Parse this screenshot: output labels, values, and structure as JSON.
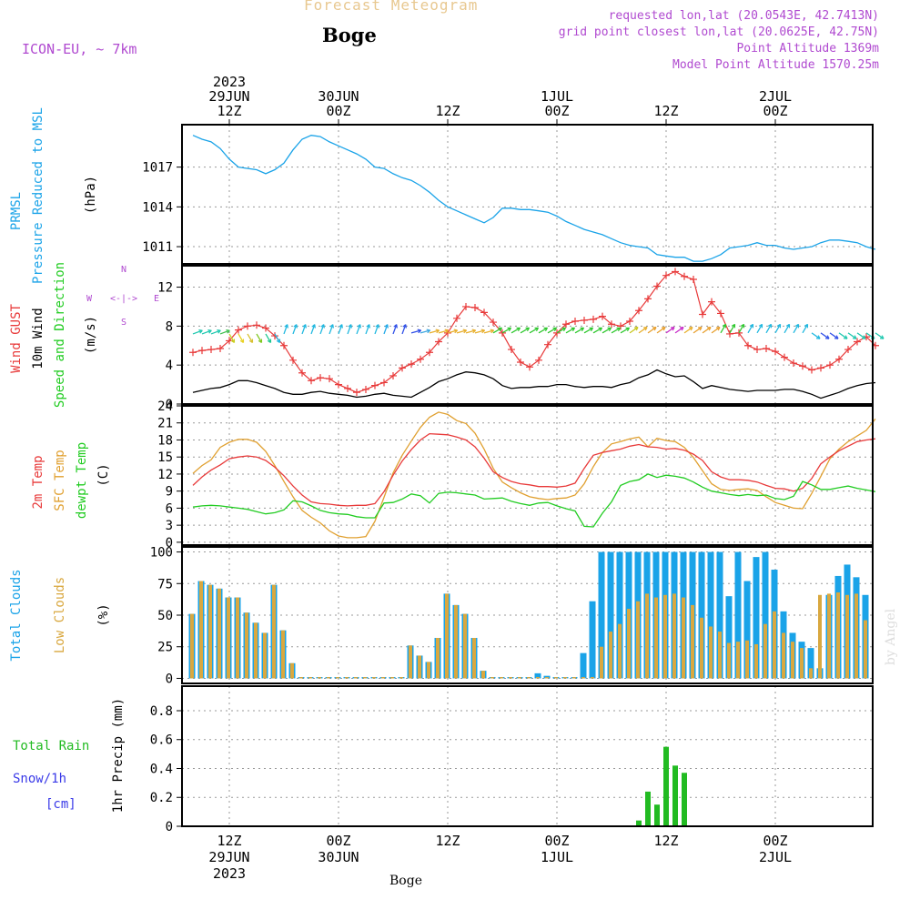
{
  "header": {
    "title": "Forecast Meteogram",
    "location": "Boge",
    "model": "ICON-EU, ~ 7km",
    "requested": "requested lon,lat (20.0543E, 42.7413N)",
    "grid_point": "grid point closest lon,lat (20.0625E, 42.75N)",
    "point_alt": "Point Altitude 1369m",
    "model_alt": "Model Point Altitude 1570.25m",
    "footer": "Boge",
    "watermark": "by Angel"
  },
  "colors": {
    "pressure": "#1aa3e8",
    "gust": "#e83a3a",
    "wind": "#000000",
    "temp": "#e83a3a",
    "sfc": "#e0a030",
    "dewpt": "#22cc22",
    "total_cloud": "#1aa3e8",
    "low_cloud": "#d9a840",
    "rain": "#22bb22",
    "snow": "#3a3ae8",
    "label_purple": "#b04ad0",
    "title_orange": "#e8c890"
  },
  "time_axis": {
    "top": [
      {
        "i": 4,
        "lines": [
          "2023",
          "29JUN",
          "12Z"
        ]
      },
      {
        "i": 16,
        "lines": [
          "30JUN",
          "00Z"
        ]
      },
      {
        "i": 28,
        "lines": [
          "12Z"
        ]
      },
      {
        "i": 40,
        "lines": [
          "1JUL",
          "00Z"
        ]
      },
      {
        "i": 52,
        "lines": [
          "12Z"
        ]
      },
      {
        "i": 64,
        "lines": [
          "2JUL",
          "00Z"
        ]
      }
    ],
    "bottom": [
      {
        "i": 4,
        "lines": [
          "12Z",
          "29JUN",
          "2023"
        ]
      },
      {
        "i": 16,
        "lines": [
          "00Z",
          "30JUN"
        ]
      },
      {
        "i": 28,
        "lines": [
          "12Z"
        ]
      },
      {
        "i": 40,
        "lines": [
          "00Z",
          "1JUL"
        ]
      },
      {
        "i": 52,
        "lines": [
          "12Z"
        ]
      },
      {
        "i": 64,
        "lines": [
          "00Z",
          "2JUL"
        ]
      }
    ]
  },
  "panel_labels": {
    "pressure": [
      "PRMSL",
      "Pressure Reduced to MSL"
    ],
    "pressure_unit": "(hPa)",
    "wind_gust": "Wind GUST",
    "wind_10m": "10m Wind",
    "wind_speed_dir": "Speed and Direction",
    "wind_unit": "(m/s)",
    "compass": {
      "n": "N",
      "s": "S",
      "w": "W",
      "e": "E",
      "arrows": "<-|->"
    },
    "temp": "2m Temp",
    "sfc": "SFC Temp",
    "dewpt": "dewpt Temp",
    "temp_unit": "(C)",
    "total_clouds": "Total Clouds",
    "low_clouds": "Low Clouds",
    "cloud_unit": "(%)",
    "total_rain": "Total  Rain",
    "snow": "Snow/1h",
    "snow_unit": "[cm]",
    "precip": "1hr Precip (mm)"
  },
  "chart_data": [
    {
      "type": "line",
      "name": "PRMSL",
      "ylabel": "(hPa)",
      "ylim": [
        1009.7,
        1020.2
      ],
      "yticks": [
        1011,
        1014,
        1017
      ],
      "x_hours_step": 1,
      "values": [
        1019.4,
        1019.1,
        1018.9,
        1018.4,
        1017.6,
        1017.0,
        1016.9,
        1016.8,
        1016.5,
        1016.8,
        1017.3,
        1018.3,
        1019.1,
        1019.4,
        1019.3,
        1018.9,
        1018.6,
        1018.3,
        1018.0,
        1017.6,
        1017.0,
        1016.9,
        1016.5,
        1016.2,
        1016.0,
        1015.6,
        1015.1,
        1014.5,
        1014.0,
        1013.7,
        1013.4,
        1013.1,
        1012.8,
        1013.2,
        1013.9,
        1013.9,
        1013.8,
        1013.8,
        1013.7,
        1013.6,
        1013.3,
        1012.9,
        1012.6,
        1012.3,
        1012.1,
        1011.9,
        1011.6,
        1011.3,
        1011.1,
        1011.0,
        1010.9,
        1010.4,
        1010.3,
        1010.2,
        1010.2,
        1009.9,
        1009.9,
        1010.1,
        1010.4,
        1010.9,
        1011.0,
        1011.1,
        1011.3,
        1011.1,
        1011.1,
        1010.9,
        1010.8,
        1010.9,
        1011.0,
        1011.3,
        1011.5,
        1011.5,
        1011.4,
        1011.3,
        1011.0,
        1010.8
      ]
    },
    {
      "type": "line",
      "name": "Wind",
      "ylabel": "(m/s)",
      "ylim": [
        0,
        14.2
      ],
      "yticks": [
        0,
        4,
        8,
        12
      ],
      "series": [
        {
          "name": "Wind GUST",
          "marker": "+",
          "values": [
            5.3,
            5.5,
            5.6,
            5.7,
            6.5,
            7.6,
            8.0,
            8.1,
            7.8,
            7.0,
            6.0,
            4.5,
            3.2,
            2.4,
            2.7,
            2.6,
            2.0,
            1.6,
            1.2,
            1.5,
            1.9,
            2.2,
            2.9,
            3.7,
            4.1,
            4.6,
            5.3,
            6.4,
            7.3,
            8.8,
            10.0,
            9.9,
            9.4,
            8.4,
            7.3,
            5.6,
            4.3,
            3.8,
            4.5,
            6.1,
            7.3,
            8.2,
            8.5,
            8.6,
            8.7,
            9.0,
            8.2,
            8.0,
            8.5,
            9.6,
            10.8,
            12.1,
            13.2,
            13.6,
            13.1,
            12.8,
            9.2,
            10.5,
            9.3,
            7.2,
            7.3,
            6.0,
            5.6,
            5.7,
            5.4,
            4.8,
            4.2,
            3.9,
            3.5,
            3.7,
            4.0,
            4.6,
            5.6,
            6.4,
            6.9,
            6.0
          ]
        },
        {
          "name": "10m Wind",
          "values": [
            1.2,
            1.4,
            1.6,
            1.7,
            2.0,
            2.4,
            2.4,
            2.2,
            1.9,
            1.6,
            1.2,
            1.0,
            1.0,
            1.2,
            1.3,
            1.1,
            1.0,
            0.9,
            0.7,
            0.8,
            1.0,
            1.1,
            0.9,
            0.8,
            0.7,
            1.2,
            1.7,
            2.3,
            2.6,
            3.0,
            3.3,
            3.2,
            3.0,
            2.6,
            1.9,
            1.6,
            1.7,
            1.7,
            1.8,
            1.8,
            2.0,
            2.0,
            1.8,
            1.7,
            1.8,
            1.8,
            1.7,
            2.0,
            2.2,
            2.7,
            3.0,
            3.5,
            3.1,
            2.8,
            2.9,
            2.3,
            1.6,
            1.9,
            1.7,
            1.5,
            1.4,
            1.3,
            1.4,
            1.4,
            1.4,
            1.5,
            1.5,
            1.3,
            1.0,
            0.6,
            0.9,
            1.2,
            1.6,
            1.9,
            2.1,
            2.2
          ]
        }
      ],
      "wind_barbs": "direction arrows drawn at ~6-8 m/s band"
    },
    {
      "type": "line",
      "name": "Temperature",
      "ylabel": "(C)",
      "ylim": [
        -0.5,
        24
      ],
      "yticks": [
        0,
        3,
        6,
        9,
        12,
        15,
        18,
        21,
        24
      ],
      "series": [
        {
          "name": "2m Temp",
          "values": [
            10.0,
            11.5,
            12.7,
            13.6,
            14.7,
            15.0,
            15.2,
            15.0,
            14.4,
            13.2,
            11.7,
            9.9,
            8.3,
            7.1,
            6.8,
            6.7,
            6.5,
            6.4,
            6.5,
            6.5,
            6.8,
            8.9,
            11.8,
            14.3,
            16.3,
            18.0,
            19.1,
            19.0,
            18.9,
            18.5,
            18.0,
            16.8,
            14.8,
            12.4,
            11.4,
            10.7,
            10.3,
            10.1,
            9.8,
            9.8,
            9.7,
            9.9,
            10.4,
            13.0,
            15.3,
            15.8,
            16.1,
            16.4,
            16.9,
            17.2,
            16.8,
            16.7,
            16.4,
            16.5,
            16.2,
            15.5,
            14.4,
            12.4,
            11.5,
            11.0,
            11.0,
            10.9,
            10.6,
            10.0,
            9.5,
            9.4,
            9.0,
            9.5,
            11.2,
            13.8,
            15.0,
            16.1,
            16.9,
            17.7,
            18.0,
            18.2
          ]
        },
        {
          "name": "SFC Temp",
          "values": [
            12.1,
            13.5,
            14.5,
            16.7,
            17.6,
            18.1,
            18.1,
            17.6,
            16.0,
            13.5,
            10.7,
            8.0,
            5.6,
            4.4,
            3.4,
            2.0,
            1.1,
            0.8,
            0.8,
            1.0,
            3.7,
            7.9,
            12.2,
            15.3,
            17.8,
            20.2,
            22.0,
            22.9,
            22.5,
            21.4,
            20.9,
            19.2,
            16.4,
            13.0,
            10.6,
            9.6,
            8.7,
            8.0,
            7.7,
            7.5,
            7.7,
            7.8,
            8.3,
            10.3,
            13.3,
            15.8,
            17.3,
            17.7,
            18.2,
            18.5,
            16.8,
            18.3,
            17.9,
            17.7,
            16.7,
            14.9,
            12.6,
            10.3,
            9.3,
            9.1,
            9.3,
            9.4,
            9.1,
            8.0,
            7.0,
            6.5,
            6.0,
            5.9,
            8.6,
            11.6,
            14.7,
            16.4,
            17.7,
            18.7,
            19.7,
            21.7
          ]
        },
        {
          "name": "dewpt Temp",
          "values": [
            6.2,
            6.4,
            6.5,
            6.4,
            6.2,
            6.0,
            5.8,
            5.4,
            5.0,
            5.2,
            5.7,
            7.3,
            7.1,
            6.4,
            5.6,
            5.2,
            5.0,
            4.9,
            4.5,
            4.3,
            4.3,
            6.9,
            7.0,
            7.6,
            8.5,
            8.2,
            6.9,
            8.6,
            8.8,
            8.7,
            8.5,
            8.3,
            7.6,
            7.7,
            7.8,
            7.2,
            6.8,
            6.5,
            6.9,
            7.0,
            6.4,
            5.9,
            5.5,
            2.8,
            2.7,
            5.1,
            7.1,
            10.0,
            10.7,
            11.0,
            12.0,
            11.4,
            11.8,
            11.6,
            11.3,
            10.6,
            9.7,
            9.0,
            8.7,
            8.4,
            8.2,
            8.4,
            8.2,
            8.3,
            7.7,
            7.5,
            8.1,
            10.7,
            10.1,
            9.3,
            9.3,
            9.6,
            9.9,
            9.5,
            9.2,
            8.9
          ]
        }
      ]
    },
    {
      "type": "bar",
      "name": "Clouds",
      "ylabel": "(%)",
      "ylim": [
        -4,
        104
      ],
      "yticks": [
        0,
        25,
        50,
        75,
        100
      ],
      "series": [
        {
          "name": "Total Clouds",
          "values": [
            51,
            77,
            74,
            71,
            64,
            64,
            52,
            44,
            36,
            74,
            38,
            12,
            1,
            1,
            1,
            1,
            1,
            1,
            1,
            1,
            1,
            1,
            1,
            1,
            26,
            18,
            13,
            32,
            67,
            58,
            51,
            32,
            6,
            1,
            1,
            1,
            1,
            1,
            4,
            2,
            1,
            1,
            1,
            20,
            61,
            100,
            100,
            100,
            100,
            100,
            100,
            100,
            100,
            100,
            100,
            100,
            100,
            100,
            100,
            65,
            100,
            77,
            96,
            100,
            86,
            53,
            36,
            29,
            24,
            8,
            66,
            81,
            90,
            80,
            66
          ]
        },
        {
          "name": "Low Clouds",
          "values": [
            51,
            77,
            74,
            71,
            64,
            64,
            52,
            44,
            36,
            74,
            38,
            12,
            1,
            1,
            1,
            1,
            1,
            1,
            1,
            1,
            1,
            1,
            1,
            1,
            26,
            18,
            13,
            32,
            67,
            58,
            51,
            32,
            6,
            1,
            1,
            1,
            1,
            1,
            1,
            1,
            1,
            1,
            1,
            1,
            1,
            25,
            37,
            43,
            55,
            61,
            67,
            64,
            66,
            67,
            64,
            58,
            48,
            41,
            37,
            28,
            29,
            30,
            27,
            43,
            53,
            36,
            29,
            24,
            8,
            66,
            67,
            68,
            66,
            67,
            46
          ]
        }
      ]
    },
    {
      "type": "bar",
      "name": "Precip",
      "ylabel": "1hr Precip (mm)",
      "ylim": [
        0,
        0.97
      ],
      "yticks": [
        0,
        0.2,
        0.4,
        0.6,
        0.8
      ],
      "series": [
        {
          "name": "Total Rain",
          "values": [
            0,
            0,
            0,
            0,
            0,
            0,
            0,
            0,
            0,
            0,
            0,
            0,
            0,
            0,
            0,
            0,
            0,
            0,
            0,
            0,
            0,
            0,
            0,
            0,
            0,
            0,
            0,
            0,
            0,
            0,
            0,
            0,
            0,
            0,
            0,
            0,
            0,
            0,
            0,
            0,
            0,
            0,
            0,
            0,
            0,
            0,
            0,
            0,
            0,
            0.04,
            0.24,
            0.15,
            0.55,
            0.42,
            0.37,
            0,
            0,
            0,
            0,
            0,
            0,
            0,
            0,
            0,
            0,
            0,
            0,
            0,
            0,
            0,
            0,
            0,
            0,
            0,
            0,
            0
          ]
        }
      ]
    }
  ]
}
